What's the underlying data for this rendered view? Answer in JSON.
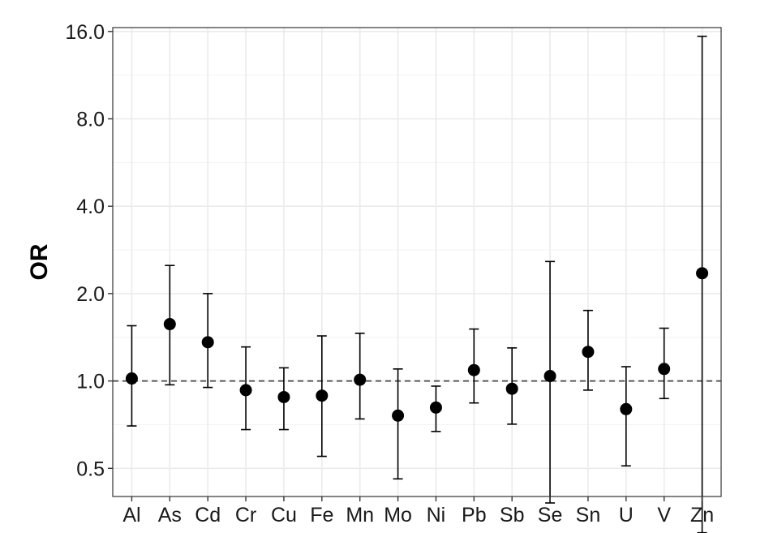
{
  "chart_data": {
    "type": "scatter",
    "title": "",
    "xlabel": "",
    "ylabel": "OR",
    "y_scale": "log2",
    "ylim": [
      0.4,
      16.5
    ],
    "yticks": [
      0.5,
      1.0,
      2.0,
      4.0,
      8.0,
      16.0
    ],
    "ytick_labels": [
      "0.5",
      "1.0",
      "2.0",
      "4.0",
      "8.0",
      "16.0"
    ],
    "reference_line": {
      "y": 1.0,
      "style": "dashed"
    },
    "grid": true,
    "legend": "none",
    "categories": [
      "Al",
      "As",
      "Cd",
      "Cr",
      "Cu",
      "Fe",
      "Mn",
      "Mo",
      "Ni",
      "Pb",
      "Sb",
      "Se",
      "Sn",
      "U",
      "V",
      "Zn"
    ],
    "series": [
      {
        "or": [
          1.02,
          1.57,
          1.36,
          0.93,
          0.88,
          0.89,
          1.01,
          0.76,
          0.81,
          1.09,
          0.94,
          1.04,
          1.26,
          0.8,
          1.1,
          2.35
        ],
        "lower": [
          0.7,
          0.97,
          0.95,
          0.68,
          0.68,
          0.55,
          0.74,
          0.46,
          0.67,
          0.84,
          0.71,
          0.38,
          0.93,
          0.51,
          0.87,
          0.3
        ],
        "upper": [
          1.55,
          2.5,
          2.0,
          1.31,
          1.11,
          1.43,
          1.46,
          1.1,
          0.96,
          1.51,
          1.3,
          2.58,
          1.75,
          1.12,
          1.52,
          15.4
        ]
      }
    ],
    "colors": {
      "marker": "#000000",
      "grid": "#ebebeb",
      "axis": "#333333",
      "reference": "#444444"
    }
  }
}
